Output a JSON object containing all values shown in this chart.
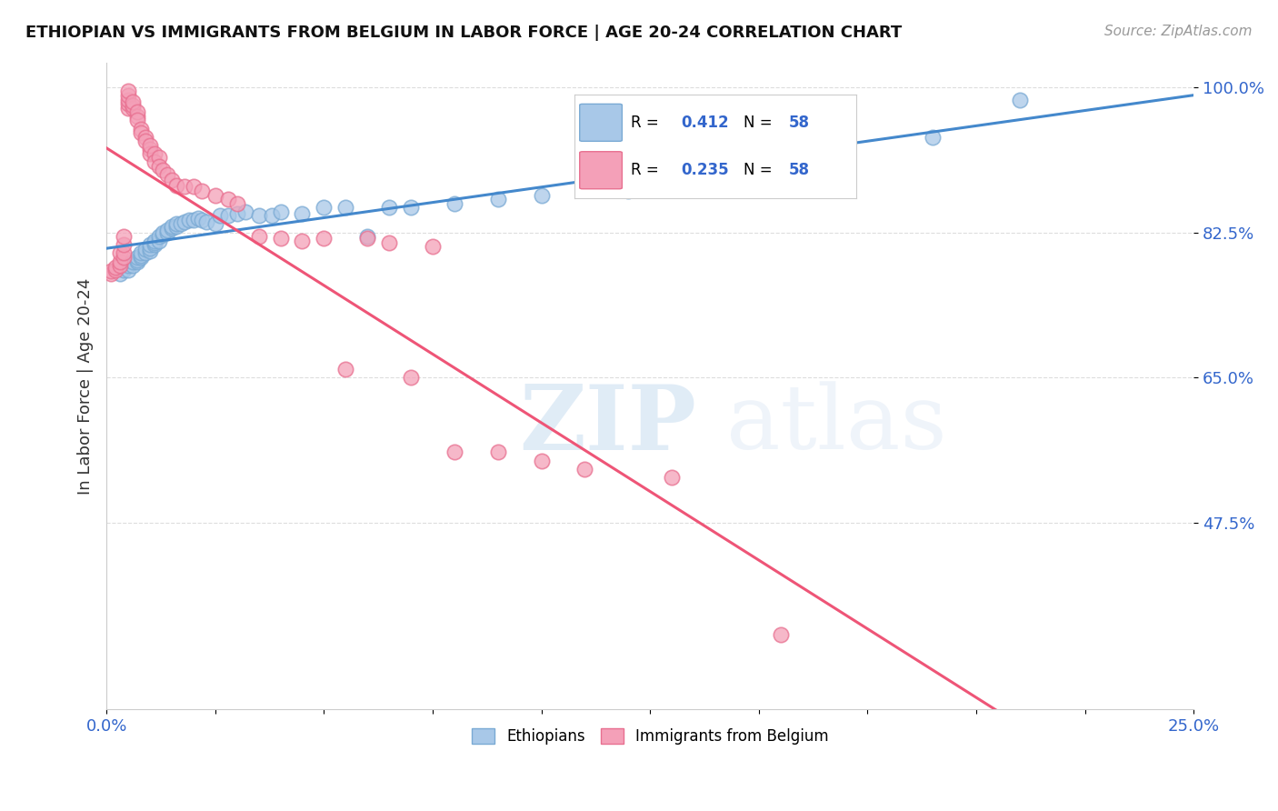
{
  "title": "ETHIOPIAN VS IMMIGRANTS FROM BELGIUM IN LABOR FORCE | AGE 20-24 CORRELATION CHART",
  "source": "Source: ZipAtlas.com",
  "ylabel": "In Labor Force | Age 20-24",
  "xmin": 0.0,
  "xmax": 0.25,
  "ymin": 0.25,
  "ymax": 1.03,
  "ytick_positions": [
    0.475,
    0.65,
    0.825,
    1.0
  ],
  "ytick_labels": [
    "47.5%",
    "65.0%",
    "82.5%",
    "100.0%"
  ],
  "xtick_positions": [
    0.0,
    0.25
  ],
  "xtick_labels": [
    "0.0%",
    "25.0%"
  ],
  "legend_r_blue": "R = 0.412",
  "legend_n_blue": "N = 58",
  "legend_r_pink": "R = 0.235",
  "legend_n_pink": "N = 58",
  "label_ethiopians": "Ethiopians",
  "label_belgium": "Immigrants from Belgium",
  "blue_color": "#a8c8e8",
  "pink_color": "#f4a0b8",
  "blue_edge": "#7aaad4",
  "pink_edge": "#e87090",
  "trend_blue": "#4488cc",
  "trend_pink": "#ee5577",
  "blue_scatter_x": [
    0.003,
    0.004,
    0.005,
    0.005,
    0.006,
    0.006,
    0.007,
    0.007,
    0.007,
    0.008,
    0.008,
    0.008,
    0.009,
    0.009,
    0.01,
    0.01,
    0.01,
    0.011,
    0.011,
    0.011,
    0.012,
    0.012,
    0.013,
    0.013,
    0.014,
    0.014,
    0.015,
    0.015,
    0.016,
    0.016,
    0.017,
    0.018,
    0.019,
    0.02,
    0.021,
    0.022,
    0.023,
    0.025,
    0.026,
    0.028,
    0.03,
    0.032,
    0.035,
    0.038,
    0.04,
    0.045,
    0.05,
    0.055,
    0.06,
    0.065,
    0.07,
    0.08,
    0.09,
    0.1,
    0.12,
    0.15,
    0.19,
    0.21
  ],
  "blue_scatter_y": [
    0.775,
    0.78,
    0.78,
    0.785,
    0.785,
    0.79,
    0.79,
    0.792,
    0.795,
    0.795,
    0.797,
    0.8,
    0.8,
    0.805,
    0.803,
    0.806,
    0.81,
    0.81,
    0.813,
    0.815,
    0.815,
    0.82,
    0.822,
    0.825,
    0.825,
    0.828,
    0.83,
    0.832,
    0.832,
    0.835,
    0.836,
    0.838,
    0.84,
    0.84,
    0.842,
    0.84,
    0.838,
    0.835,
    0.845,
    0.845,
    0.848,
    0.85,
    0.845,
    0.845,
    0.85,
    0.848,
    0.855,
    0.855,
    0.82,
    0.855,
    0.855,
    0.86,
    0.865,
    0.87,
    0.875,
    0.88,
    0.94,
    0.985
  ],
  "pink_scatter_x": [
    0.001,
    0.001,
    0.002,
    0.002,
    0.003,
    0.003,
    0.003,
    0.004,
    0.004,
    0.004,
    0.004,
    0.005,
    0.005,
    0.005,
    0.005,
    0.005,
    0.006,
    0.006,
    0.006,
    0.007,
    0.007,
    0.007,
    0.008,
    0.008,
    0.009,
    0.009,
    0.01,
    0.01,
    0.01,
    0.011,
    0.011,
    0.012,
    0.012,
    0.013,
    0.014,
    0.015,
    0.016,
    0.018,
    0.02,
    0.022,
    0.025,
    0.028,
    0.03,
    0.035,
    0.04,
    0.045,
    0.05,
    0.055,
    0.06,
    0.065,
    0.07,
    0.075,
    0.08,
    0.09,
    0.1,
    0.11,
    0.13,
    0.155
  ],
  "pink_scatter_y": [
    0.775,
    0.778,
    0.78,
    0.783,
    0.785,
    0.79,
    0.8,
    0.795,
    0.8,
    0.81,
    0.82,
    0.975,
    0.98,
    0.985,
    0.99,
    0.995,
    0.975,
    0.978,
    0.982,
    0.965,
    0.97,
    0.96,
    0.95,
    0.945,
    0.94,
    0.935,
    0.925,
    0.92,
    0.93,
    0.92,
    0.91,
    0.915,
    0.905,
    0.9,
    0.895,
    0.888,
    0.882,
    0.88,
    0.88,
    0.875,
    0.87,
    0.865,
    0.86,
    0.82,
    0.818,
    0.815,
    0.818,
    0.66,
    0.818,
    0.812,
    0.65,
    0.808,
    0.56,
    0.56,
    0.55,
    0.54,
    0.53,
    0.34
  ],
  "watermark_zip": "ZIP",
  "watermark_atlas": "atlas",
  "grid_color": "#dddddd",
  "bg_color": "#ffffff"
}
